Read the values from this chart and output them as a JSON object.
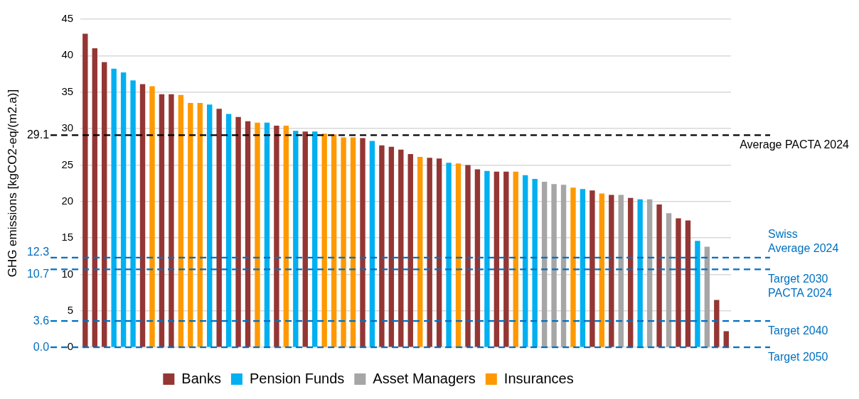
{
  "chart_data": {
    "type": "bar",
    "ylabel": "GHG emissions [kgCO2-eq/(m2.a)]",
    "categories": [
      null,
      null,
      null,
      null,
      null,
      null,
      null,
      null,
      null,
      null,
      null,
      null,
      null,
      null,
      null,
      null,
      null,
      null,
      null,
      null,
      null,
      null,
      null,
      null,
      null,
      null,
      null,
      null,
      null,
      null,
      null,
      null,
      null,
      null,
      null,
      null,
      null,
      null,
      null,
      null,
      null,
      null,
      null,
      null,
      null,
      null,
      null,
      null,
      null,
      null,
      null,
      null,
      null,
      null,
      null,
      null,
      null,
      null,
      null,
      null,
      null,
      null,
      null,
      null,
      null,
      null,
      null,
      null
    ],
    "series": [
      {
        "name": "Banks",
        "color": "#943634",
        "values": [
          43.0,
          41.0,
          39.1,
          null,
          null,
          null,
          36.1,
          null,
          34.7,
          34.7,
          null,
          null,
          null,
          null,
          32.7,
          null,
          31.6,
          31.0,
          null,
          null,
          30.4,
          null,
          null,
          29.6,
          null,
          null,
          null,
          null,
          null,
          28.7,
          null,
          27.7,
          27.5,
          27.1,
          26.5,
          null,
          26.0,
          25.9,
          null,
          null,
          25.0,
          24.4,
          null,
          24.1,
          24.1,
          null,
          null,
          null,
          null,
          null,
          null,
          null,
          null,
          21.5,
          null,
          20.9,
          null,
          20.5,
          null,
          null,
          19.6,
          null,
          17.7,
          17.4,
          null,
          null,
          6.5,
          2.2
        ]
      },
      {
        "name": "Pension Funds",
        "color": "#00b0f0",
        "values": [
          null,
          null,
          null,
          38.2,
          37.7,
          36.6,
          null,
          null,
          null,
          null,
          null,
          null,
          null,
          33.3,
          null,
          32.0,
          null,
          null,
          null,
          30.8,
          null,
          null,
          29.7,
          null,
          29.6,
          null,
          null,
          null,
          null,
          null,
          28.3,
          null,
          null,
          null,
          null,
          null,
          null,
          null,
          25.3,
          null,
          null,
          null,
          24.2,
          null,
          null,
          null,
          23.6,
          23.1,
          null,
          null,
          null,
          null,
          21.7,
          null,
          null,
          null,
          null,
          null,
          20.3,
          null,
          null,
          null,
          null,
          null,
          14.6,
          null,
          null,
          null
        ]
      },
      {
        "name": "Asset Managers",
        "color": "#a6a6a6",
        "values": [
          null,
          null,
          null,
          null,
          null,
          null,
          null,
          null,
          null,
          null,
          null,
          null,
          null,
          null,
          null,
          null,
          null,
          null,
          null,
          null,
          null,
          null,
          null,
          null,
          null,
          null,
          null,
          null,
          null,
          null,
          null,
          null,
          null,
          null,
          null,
          null,
          null,
          null,
          null,
          null,
          null,
          null,
          null,
          null,
          null,
          null,
          null,
          null,
          22.7,
          22.4,
          22.3,
          null,
          null,
          null,
          null,
          null,
          20.9,
          null,
          null,
          20.3,
          null,
          18.4,
          null,
          null,
          null,
          13.8,
          null,
          null
        ]
      },
      {
        "name": "Insurances",
        "color": "#ff9900",
        "values": [
          null,
          null,
          null,
          null,
          null,
          null,
          null,
          35.8,
          null,
          null,
          34.6,
          33.5,
          33.5,
          null,
          null,
          null,
          null,
          null,
          30.8,
          null,
          null,
          30.4,
          null,
          null,
          null,
          29.3,
          29.2,
          28.8,
          28.8,
          null,
          null,
          null,
          null,
          null,
          null,
          26.1,
          null,
          null,
          null,
          25.2,
          null,
          null,
          null,
          null,
          null,
          24.1,
          null,
          null,
          null,
          null,
          null,
          21.9,
          null,
          null,
          21.1,
          null,
          null,
          null,
          null,
          null,
          null,
          null,
          null,
          null,
          null,
          null,
          null,
          null
        ]
      }
    ],
    "annotations": [
      "29.1",
      "12.3",
      "10.7",
      "3.6",
      "0.0"
    ],
    "ylim": [
      0,
      45
    ],
    "yticks": [
      0,
      5,
      10,
      15,
      20,
      25,
      30,
      35,
      40,
      45
    ],
    "grid": "y",
    "legend": "bottom",
    "ref_lines": [
      {
        "axis": "y",
        "value": 29.1,
        "label": "Average PACTA 2024",
        "color": "#000000",
        "line_style": "dashed"
      },
      {
        "axis": "y",
        "value": 12.3,
        "label": "Swiss\nAverage 2024",
        "color": "#0070c0",
        "line_style": "dashed"
      },
      {
        "axis": "y",
        "value": 10.7,
        "label": "Target 2030\nPACTA 2024",
        "color": "#0070c0",
        "line_style": "dashed"
      },
      {
        "axis": "y",
        "value": 3.6,
        "label": "Target 2040",
        "color": "#0070c0",
        "line_style": "dashed"
      },
      {
        "axis": "y",
        "value": 0.0,
        "label": "Target 2050",
        "color": "#0070c0",
        "line_style": "dashed"
      }
    ]
  }
}
